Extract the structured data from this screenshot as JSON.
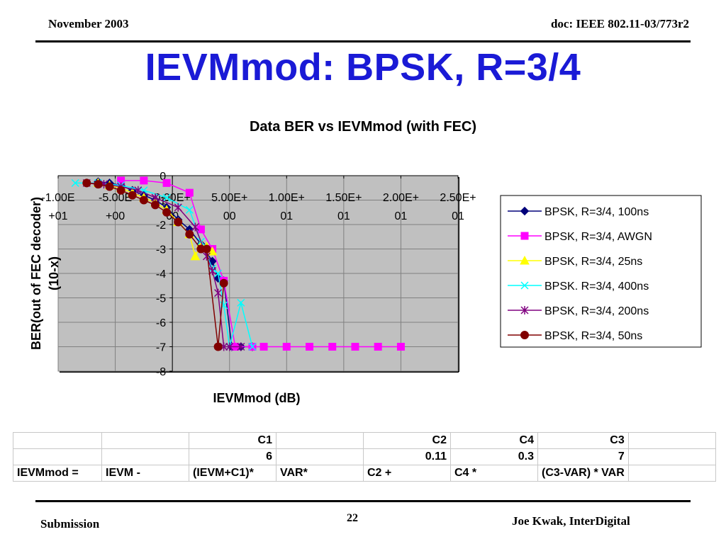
{
  "header": {
    "date": "November 2003",
    "doc": "doc: IEEE 802.11-03/773r2"
  },
  "slide": {
    "title": "IEVMmod: BPSK, R=3/4"
  },
  "chart_data": {
    "type": "scatter",
    "title": "Data BER vs IEVMmod (with FEC)",
    "xlabel": "IEVMmod  (dB)",
    "ylabel": [
      "BER(out of FEC decoder)",
      "(10-x)"
    ],
    "xlim": [
      -10,
      25
    ],
    "ylim": [
      -8,
      0
    ],
    "xticks": [
      {
        "v": -10,
        "l": [
          "-1.00E",
          "+01"
        ]
      },
      {
        "v": -5,
        "l": [
          "-5.00E",
          "+00"
        ]
      },
      {
        "v": 0,
        "l": [
          "0.00E+",
          "00"
        ]
      },
      {
        "v": 5,
        "l": [
          "5.00E+",
          "00"
        ]
      },
      {
        "v": 10,
        "l": [
          "1.00E+",
          "01"
        ]
      },
      {
        "v": 15,
        "l": [
          "1.50E+",
          "01"
        ]
      },
      {
        "v": 20,
        "l": [
          "2.00E+",
          "01"
        ]
      },
      {
        "v": 25,
        "l": [
          "2.50E+",
          "01"
        ]
      }
    ],
    "yticks": [
      0,
      -1,
      -2,
      -3,
      -4,
      -5,
      -6,
      -7,
      -8
    ],
    "grid": true,
    "legend_position": "right",
    "plot_background": "#c0c0c0",
    "series": [
      {
        "name": "BPSK, R=3/4, 100ns",
        "color": "#00007a",
        "marker": "diamond",
        "x": [
          -6.5,
          -5.5,
          -4.5,
          -3.5,
          -2.5,
          -1.5,
          -0.5,
          0.5,
          1.5,
          2.5,
          3.5,
          4.0,
          4.5,
          5.2,
          6.0,
          7.0
        ],
        "y": [
          -0.25,
          -0.3,
          -0.4,
          -0.6,
          -0.8,
          -1.0,
          -1.3,
          -1.8,
          -2.2,
          -2.8,
          -3.5,
          -4.2,
          -4.3,
          -7.0,
          -7.0,
          -7.0
        ]
      },
      {
        "name": "BPSK, R=3/4, AWGN",
        "color": "#ff00ff",
        "marker": "square",
        "x": [
          -4.5,
          -2.5,
          -0.5,
          1.5,
          2.5,
          3.5,
          4.5,
          5.5,
          7.0,
          8.0,
          10.0,
          12.0,
          14.0,
          16.0,
          18.0,
          20.0
        ],
        "y": [
          -0.2,
          -0.2,
          -0.3,
          -0.7,
          -2.2,
          -3.0,
          -4.3,
          -7.0,
          -7.0,
          -7.0,
          -7.0,
          -7.0,
          -7.0,
          -7.0,
          -7.0,
          -7.0
        ]
      },
      {
        "name": "BPSK, R=3/4, 25ns",
        "color": "#ffff00",
        "marker": "triangle",
        "x": [
          -6.5,
          -5.5,
          -4.5,
          -3.5,
          -2.5,
          -1.5,
          -0.5,
          0.5,
          1.5,
          2.0,
          2.5,
          3.0,
          3.5
        ],
        "y": [
          -0.3,
          -0.4,
          -0.5,
          -0.7,
          -0.9,
          -1.1,
          -1.4,
          -1.9,
          -2.4,
          -3.3,
          -2.8,
          -2.9,
          -3.1
        ]
      },
      {
        "name": "BPSK. R=3/4, 400ns",
        "color": "#00ffff",
        "marker": "x",
        "x": [
          -8.5,
          -6.5,
          -4.5,
          -2.5,
          -0.5,
          1.5,
          2.5,
          3.5,
          4.0,
          4.5,
          5.0,
          6.0,
          7.0
        ],
        "y": [
          -0.3,
          -0.3,
          -0.4,
          -0.6,
          -0.9,
          -1.4,
          -2.7,
          -3.8,
          -4.0,
          -5.3,
          -7.0,
          -5.2,
          -7.0
        ]
      },
      {
        "name": "BPSK, R=3/4, 200ns",
        "color": "#800080",
        "marker": "star",
        "x": [
          -7.5,
          -6.0,
          -4.5,
          -3.0,
          -1.5,
          0.5,
          2.0,
          3.0,
          3.5,
          4.0,
          4.5,
          5.0,
          6.0
        ],
        "y": [
          -0.3,
          -0.35,
          -0.45,
          -0.6,
          -0.9,
          -1.3,
          -2.1,
          -3.3,
          -3.9,
          -4.8,
          -7.0,
          -7.0,
          -7.0
        ]
      },
      {
        "name": "BPSK, R=3/4, 50ns",
        "color": "#800000",
        "marker": "circle",
        "x": [
          -7.5,
          -6.5,
          -5.5,
          -4.5,
          -3.5,
          -2.5,
          -1.5,
          -0.5,
          0.5,
          1.5,
          2.5,
          3.0,
          4.0,
          4.5
        ],
        "y": [
          -0.3,
          -0.35,
          -0.45,
          -0.6,
          -0.8,
          -1.0,
          -1.2,
          -1.5,
          -1.9,
          -2.4,
          -3.0,
          -3.0,
          -7.0,
          -4.4
        ]
      }
    ]
  },
  "table": {
    "rows": [
      [
        "",
        "",
        "C1",
        "",
        "C2",
        "C4",
        "C3",
        ""
      ],
      [
        "",
        "",
        "6",
        "",
        "0.11",
        "0.3",
        "7",
        ""
      ],
      [
        "IEVMmod =",
        "IEVM  -",
        "(IEVM+C1)*",
        "VAR*",
        "C2    +",
        "C4   *",
        "(C3-VAR) * VAR",
        ""
      ]
    ]
  },
  "footer": {
    "left": "Submission",
    "page": "22",
    "author": "Joe Kwak, InterDigital"
  }
}
